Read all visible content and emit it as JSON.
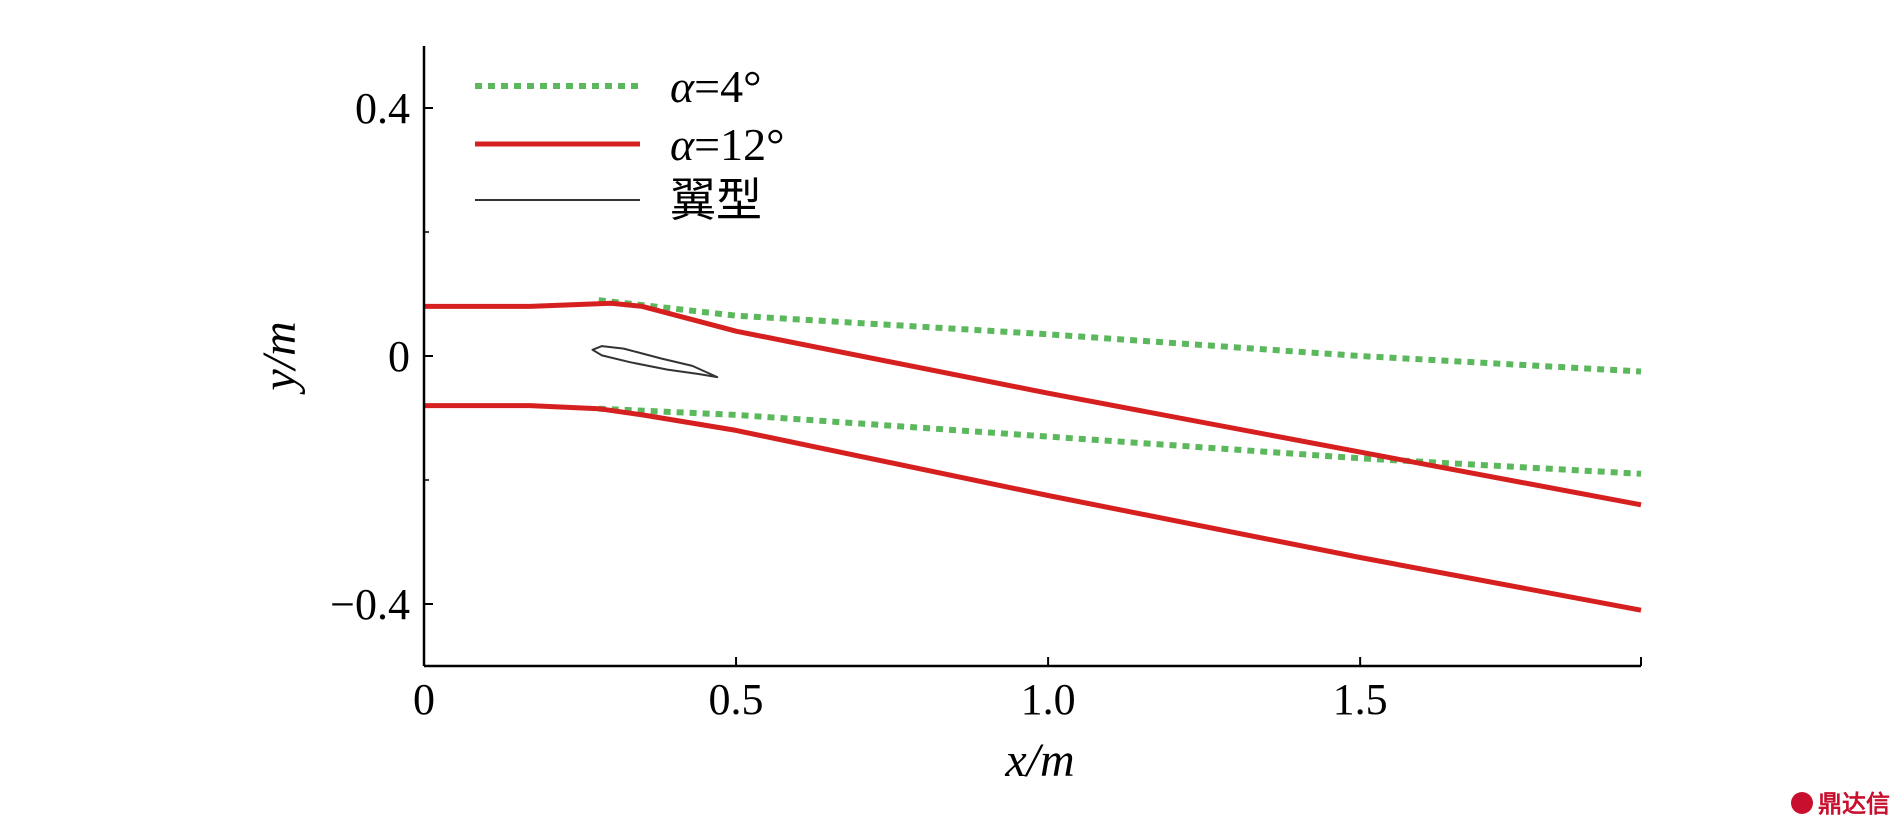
{
  "chart_data": {
    "type": "line",
    "xlabel": "x/m",
    "ylabel": "y/m",
    "xlim": [
      0,
      1.95
    ],
    "ylim": [
      -0.5,
      0.5
    ],
    "x_ticks": [
      0,
      0.5,
      1.0,
      1.5
    ],
    "x_tick_labels": [
      "0",
      "0.5",
      "1.0",
      "1.5"
    ],
    "y_ticks": [
      -0.4,
      0,
      0.4
    ],
    "y_tick_labels": [
      "−0.4",
      "0",
      "0.4"
    ],
    "legend_position": "top-left",
    "legend": [
      {
        "label_prefix": "α",
        "label_suffix": "=4°",
        "style": "dotted",
        "color": "#5cb85c"
      },
      {
        "label_prefix": "α",
        "label_suffix": "=12°",
        "style": "solid",
        "color": "#d62020"
      },
      {
        "label_prefix": "",
        "label_suffix": "翼型",
        "style": "thin",
        "color": "#333333"
      }
    ],
    "series": [
      {
        "name": "α=4°",
        "color": "#5cb85c",
        "style": "dotted",
        "lines": [
          {
            "x": [
              0.28,
              0.5,
              1.0,
              1.5,
              1.95
            ],
            "y": [
              0.09,
              0.065,
              0.035,
              0.0,
              -0.025
            ]
          },
          {
            "x": [
              0.28,
              0.5,
              1.0,
              1.5,
              1.95
            ],
            "y": [
              -0.085,
              -0.095,
              -0.13,
              -0.165,
              -0.19
            ]
          }
        ]
      },
      {
        "name": "α=12°",
        "color": "#d62020",
        "style": "solid",
        "lines": [
          {
            "x": [
              0,
              0.17,
              0.3,
              0.35,
              0.5,
              1.0,
              1.5,
              1.95
            ],
            "y": [
              0.08,
              0.08,
              0.085,
              0.08,
              0.04,
              -0.06,
              -0.155,
              -0.24
            ]
          },
          {
            "x": [
              0,
              0.17,
              0.28,
              0.35,
              0.5,
              1.0,
              1.5,
              1.95
            ],
            "y": [
              -0.08,
              -0.08,
              -0.085,
              -0.095,
              -0.12,
              -0.225,
              -0.325,
              -0.41
            ]
          }
        ]
      },
      {
        "name": "翼型",
        "color": "#333333",
        "style": "thin",
        "outline": {
          "x": [
            0.27,
            0.285,
            0.32,
            0.38,
            0.43,
            0.47,
            0.44,
            0.39,
            0.33,
            0.285,
            0.27
          ],
          "y": [
            0.01,
            0.016,
            0.012,
            -0.004,
            -0.016,
            -0.034,
            -0.029,
            -0.022,
            -0.01,
            0.001,
            0.01
          ]
        }
      }
    ]
  },
  "watermark": {
    "text": "鼎达信"
  }
}
